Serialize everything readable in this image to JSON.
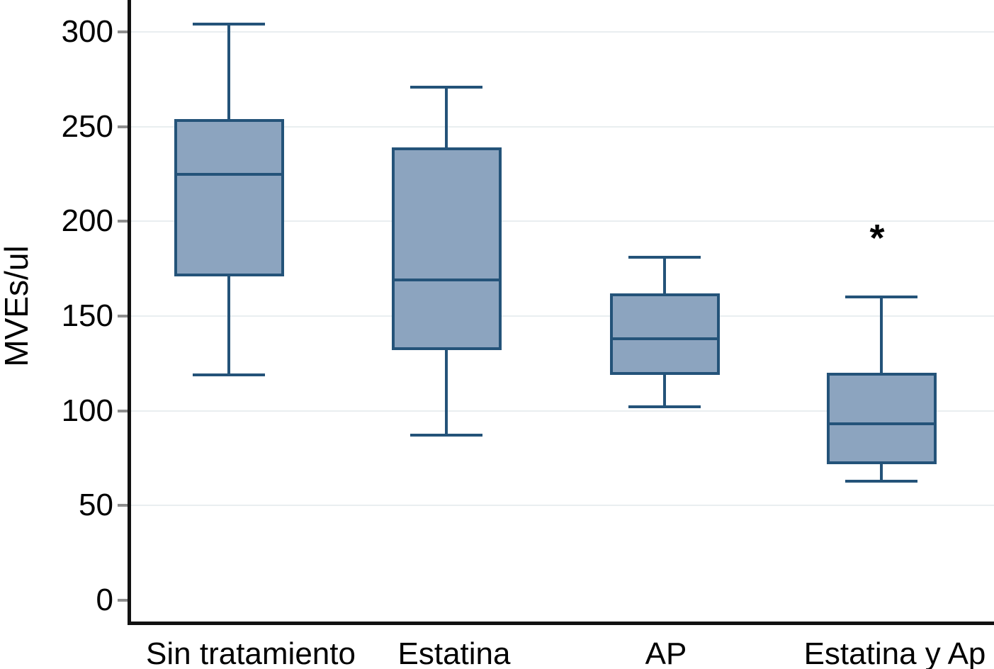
{
  "chart_data": {
    "type": "boxplot",
    "title": "",
    "xlabel": "",
    "ylabel": "MVEs/ul",
    "yticks": [
      0,
      50,
      100,
      150,
      200,
      250,
      300
    ],
    "ylim": [
      0,
      315
    ],
    "grid": "horizontal-light",
    "grid_at_zero": false,
    "legend": "none",
    "categories": [
      "Sin tratamiento",
      "Estatina",
      "AP",
      "Estatina y Ap"
    ],
    "series": [
      {
        "name": "Sin tratamiento",
        "whisker_low": 119,
        "q1": 171,
        "median": 225,
        "q3": 254,
        "whisker_high": 304
      },
      {
        "name": "Estatina",
        "whisker_low": 87,
        "q1": 132,
        "median": 169,
        "q3": 239,
        "whisker_high": 271
      },
      {
        "name": "AP",
        "whisker_low": 102,
        "q1": 119,
        "median": 138,
        "q3": 162,
        "whisker_high": 181
      },
      {
        "name": "Estatina y Ap",
        "whisker_low": 63,
        "q1": 72,
        "median": 93,
        "q3": 120,
        "whisker_high": 160
      }
    ],
    "annotations": [
      {
        "text": "*",
        "category_index": 3,
        "value": 195
      }
    ],
    "colors": {
      "box_fill": "#8ca4bf",
      "box_border": "#245379",
      "gridline": "#e9eef0",
      "axis": "#111111",
      "tick": "#8e8e8e",
      "text": "#000000",
      "background": "#ffffff"
    }
  }
}
